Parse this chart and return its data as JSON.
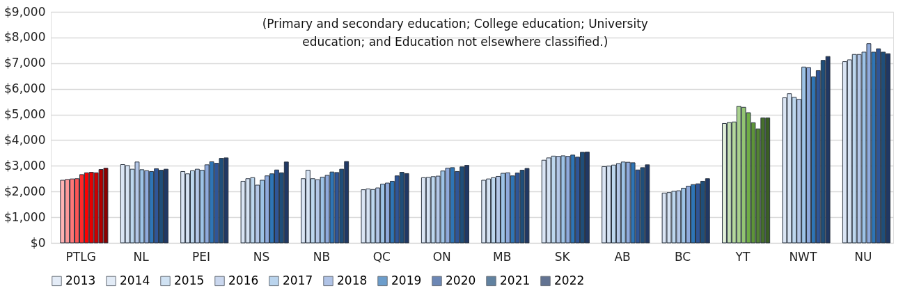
{
  "chart_data": {
    "type": "bar",
    "categories": [
      "PTLG",
      "NL",
      "PEI",
      "NS",
      "NB",
      "QC",
      "ON",
      "MB",
      "SK",
      "AB",
      "BC",
      "YT",
      "NWT",
      "NU"
    ],
    "series": [
      {
        "name": "2013",
        "color": "#dae5f4",
        "colors": [
          "#ffb3b3",
          "#dae5f4",
          "#dae5f4",
          "#dae5f4",
          "#dae5f4",
          "#dae5f4",
          "#dae5f4",
          "#dae5f4",
          "#dae5f4",
          "#dae5f4",
          "#dae5f4",
          "#e2f0d9",
          "#dae5f4",
          "#dae5f4"
        ],
        "values": [
          2440,
          3050,
          2780,
          2400,
          2500,
          2070,
          2540,
          2440,
          3220,
          2970,
          1940,
          4650,
          5650,
          7060
        ]
      },
      {
        "name": "2014",
        "color": "#d6e3f3",
        "colors": [
          "#ff9999",
          "#d6e3f3",
          "#d6e3f3",
          "#d6e3f3",
          "#d6e3f3",
          "#d6e3f3",
          "#d6e3f3",
          "#d6e3f3",
          "#d6e3f3",
          "#d6e3f3",
          "#d6e3f3",
          "#c5e0b4",
          "#d6e3f3",
          "#d6e3f3"
        ],
        "values": [
          2470,
          3010,
          2690,
          2500,
          2830,
          2100,
          2550,
          2490,
          3310,
          2990,
          1960,
          4690,
          5810,
          7130
        ]
      },
      {
        "name": "2015",
        "color": "#bdd7ee",
        "colors": [
          "#ff7777",
          "#bdd7ee",
          "#bdd7ee",
          "#bdd7ee",
          "#bdd7ee",
          "#bdd7ee",
          "#bdd7ee",
          "#bdd7ee",
          "#bdd7ee",
          "#bdd7ee",
          "#bdd7ee",
          "#b4d89c",
          "#bdd7ee",
          "#bdd7ee"
        ],
        "values": [
          2490,
          2870,
          2810,
          2540,
          2500,
          2080,
          2580,
          2540,
          3380,
          3030,
          2010,
          4710,
          5670,
          7340
        ]
      },
      {
        "name": "2016",
        "color": "#b4c7e7",
        "colors": [
          "#ff5555",
          "#b4c7e7",
          "#b4c7e7",
          "#b4c7e7",
          "#b4c7e7",
          "#b4c7e7",
          "#b4c7e7",
          "#b4c7e7",
          "#b4c7e7",
          "#b4c7e7",
          "#b4c7e7",
          "#a9d18e",
          "#b4c7e7",
          "#b4c7e7"
        ],
        "values": [
          2500,
          3150,
          2870,
          2250,
          2460,
          2140,
          2600,
          2590,
          3370,
          3090,
          2030,
          5320,
          5590,
          7340
        ]
      },
      {
        "name": "2017",
        "color": "#9dc3e6",
        "colors": [
          "#ff2a2a",
          "#9dc3e6",
          "#9dc3e6",
          "#9dc3e6",
          "#9dc3e6",
          "#9dc3e6",
          "#9dc3e6",
          "#9dc3e6",
          "#9dc3e6",
          "#9dc3e6",
          "#9dc3e6",
          "#93c572",
          "#9dc3e6",
          "#9dc3e6"
        ],
        "values": [
          2660,
          2850,
          2830,
          2440,
          2560,
          2290,
          2800,
          2710,
          3390,
          3150,
          2130,
          5280,
          6850,
          7430
        ]
      },
      {
        "name": "2018",
        "color": "#8faadc",
        "colors": [
          "#ff0000",
          "#8faadc",
          "#8faadc",
          "#8faadc",
          "#8faadc",
          "#8faadc",
          "#8faadc",
          "#8faadc",
          "#8faadc",
          "#8faadc",
          "#8faadc",
          "#70ad47",
          "#8faadc",
          "#8faadc"
        ],
        "values": [
          2730,
          2810,
          3040,
          2610,
          2630,
          2330,
          2910,
          2730,
          3370,
          3140,
          2210,
          5070,
          6830,
          7760
        ]
      },
      {
        "name": "2019",
        "color": "#2e75b6",
        "colors": [
          "#e60000",
          "#2e75b6",
          "#2e75b6",
          "#2e75b6",
          "#2e75b6",
          "#2e75b6",
          "#2e75b6",
          "#2e75b6",
          "#2e75b6",
          "#2e75b6",
          "#2e75b6",
          "#5e9438",
          "#2e75b6",
          "#2e75b6"
        ],
        "values": [
          2750,
          2780,
          3160,
          2690,
          2760,
          2400,
          2930,
          2610,
          3420,
          3120,
          2270,
          4680,
          6470,
          7430
        ]
      },
      {
        "name": "2020",
        "color": "#2f5597",
        "colors": [
          "#cc0000",
          "#2f5597",
          "#2f5597",
          "#2f5597",
          "#2f5597",
          "#2f5597",
          "#2f5597",
          "#2f5597",
          "#2f5597",
          "#2f5597",
          "#2f5597",
          "#548235",
          "#2f5597",
          "#2f5597"
        ],
        "values": [
          2730,
          2890,
          3100,
          2840,
          2740,
          2610,
          2780,
          2720,
          3340,
          2840,
          2300,
          4440,
          6710,
          7560
        ]
      },
      {
        "name": "2021",
        "color": "#1f4e79",
        "colors": [
          "#b00000",
          "#1f4e79",
          "#1f4e79",
          "#1f4e79",
          "#1f4e79",
          "#1f4e79",
          "#1f4e79",
          "#1f4e79",
          "#1f4e79",
          "#1f4e79",
          "#1f4e79",
          "#466f2c",
          "#1f4e79",
          "#1f4e79"
        ],
        "values": [
          2860,
          2830,
          3290,
          2730,
          2870,
          2750,
          2960,
          2830,
          3530,
          2930,
          2400,
          4870,
          7110,
          7430
        ]
      },
      {
        "name": "2022",
        "color": "#203864",
        "colors": [
          "#8b0000",
          "#203864",
          "#203864",
          "#203864",
          "#203864",
          "#203864",
          "#203864",
          "#203864",
          "#203864",
          "#203864",
          "#203864",
          "#3b5e24",
          "#203864",
          "#203864"
        ],
        "values": [
          2910,
          2870,
          3310,
          3150,
          3170,
          2700,
          3020,
          2900,
          3540,
          3040,
          2500,
          4870,
          7260,
          7370
        ]
      }
    ],
    "ylim": [
      0,
      9000
    ],
    "yticks": [
      {
        "value": 0,
        "label": "$0"
      },
      {
        "value": 1000,
        "label": "$1,000"
      },
      {
        "value": 2000,
        "label": "$2,000"
      },
      {
        "value": 3000,
        "label": "$3,000"
      },
      {
        "value": 4000,
        "label": "$4,000"
      },
      {
        "value": 5000,
        "label": "$5,000"
      },
      {
        "value": 6000,
        "label": "$6,000"
      },
      {
        "value": 7000,
        "label": "$7,000"
      },
      {
        "value": 8000,
        "label": "$8,000"
      },
      {
        "value": 9000,
        "label": "$9,000"
      }
    ],
    "grid": "y",
    "legend": "bottom",
    "annotations": [
      "(Primary and secondary education; College education; University education; and Education not elsewhere classified.)"
    ]
  }
}
